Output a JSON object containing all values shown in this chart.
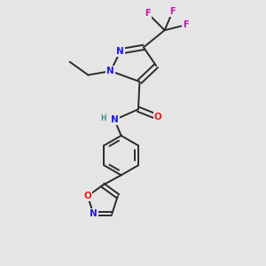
{
  "background_color": "#e5e5e5",
  "bond_color": "#2a2a2a",
  "atom_colors": {
    "N": "#1a1aee",
    "O": "#ee1a1a",
    "F": "#cc10aa",
    "H": "#3a8a8a",
    "C": "#2a2a2a"
  },
  "figsize": [
    3.0,
    3.0
  ],
  "dpi": 100
}
